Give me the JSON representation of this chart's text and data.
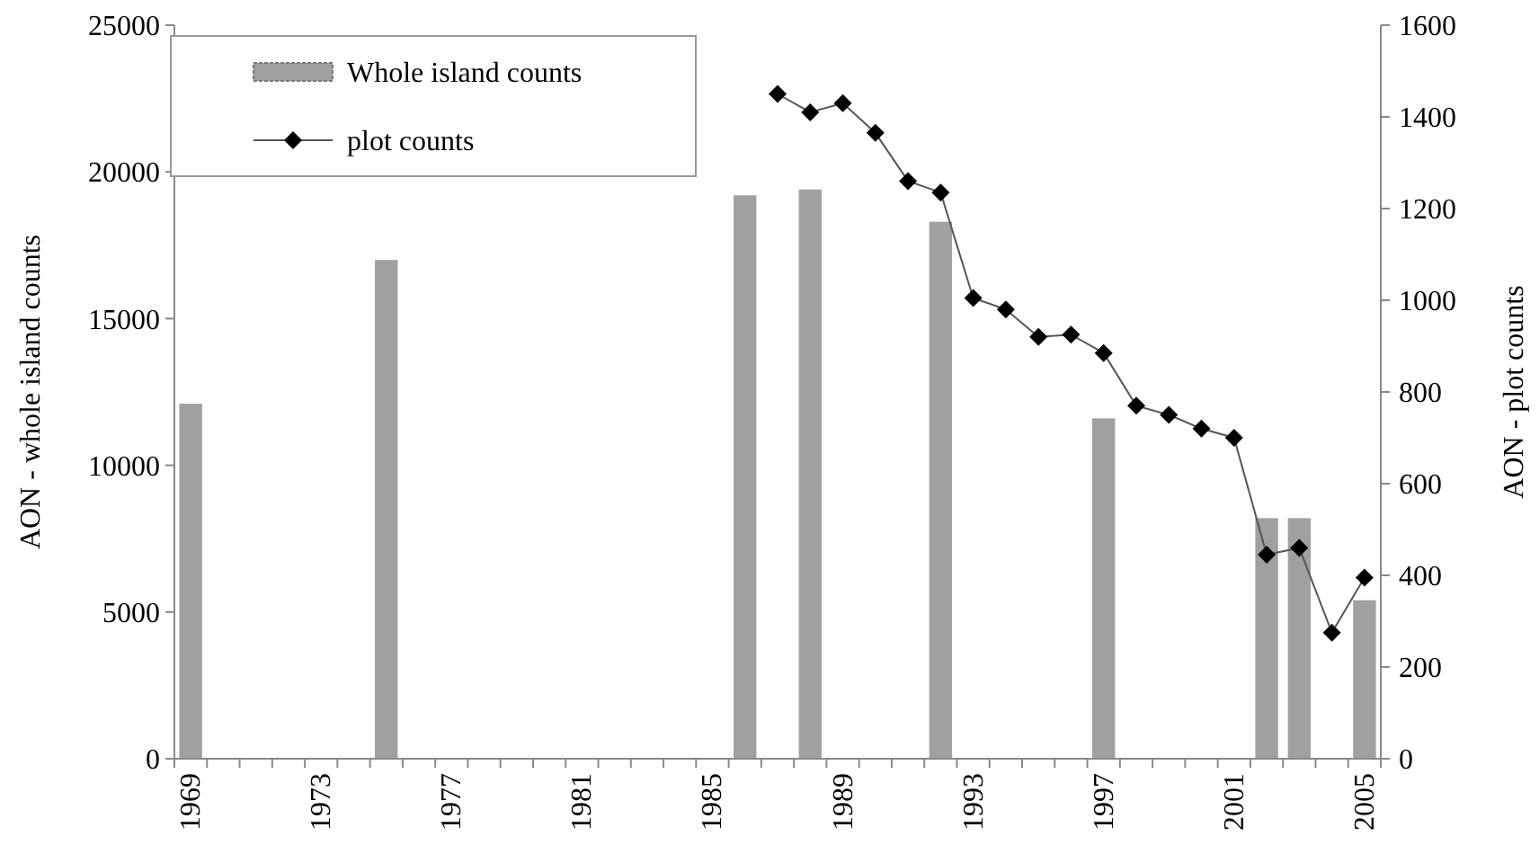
{
  "chart_data": {
    "type": "bar",
    "ylabel": "AON - whole island counts",
    "y2label": "AON - plot counts",
    "categories": [
      "1969",
      null,
      null,
      null,
      "1973",
      null,
      null,
      null,
      "1977",
      null,
      null,
      null,
      "1981",
      null,
      null,
      null,
      "1985",
      null,
      null,
      null,
      "1989",
      null,
      null,
      null,
      "1993",
      null,
      null,
      null,
      "1997",
      null,
      null,
      null,
      "2001",
      null,
      null,
      null,
      "2005"
    ],
    "series": [
      {
        "name": "Whole island counts",
        "color": "#a0a0a0",
        "values": [
          12100,
          null,
          null,
          null,
          null,
          null,
          17000,
          null,
          null,
          null,
          null,
          null,
          null,
          null,
          null,
          null,
          null,
          19200,
          null,
          19400,
          null,
          null,
          null,
          18300,
          null,
          null,
          null,
          null,
          11600,
          null,
          null,
          null,
          null,
          8200,
          8200,
          null,
          5400
        ]
      },
      {
        "name": "plot counts",
        "type": "line",
        "axis": "y2",
        "color": "#000000",
        "values": [
          null,
          null,
          null,
          null,
          null,
          null,
          null,
          null,
          null,
          null,
          null,
          null,
          null,
          null,
          null,
          null,
          null,
          null,
          1450,
          1410,
          1430,
          1365,
          1260,
          1235,
          1005,
          980,
          920,
          925,
          885,
          770,
          750,
          720,
          700,
          445,
          460,
          275,
          395
        ]
      }
    ],
    "ylim": [
      0,
      25000
    ],
    "yticks": [
      0,
      5000,
      10000,
      15000,
      20000,
      25000
    ],
    "y2lim": [
      0,
      1600
    ],
    "y2ticks": [
      0,
      200,
      400,
      600,
      800,
      1000,
      1200,
      1400,
      1600
    ],
    "marker": "diamond",
    "legend": "top left",
    "grid": false
  }
}
